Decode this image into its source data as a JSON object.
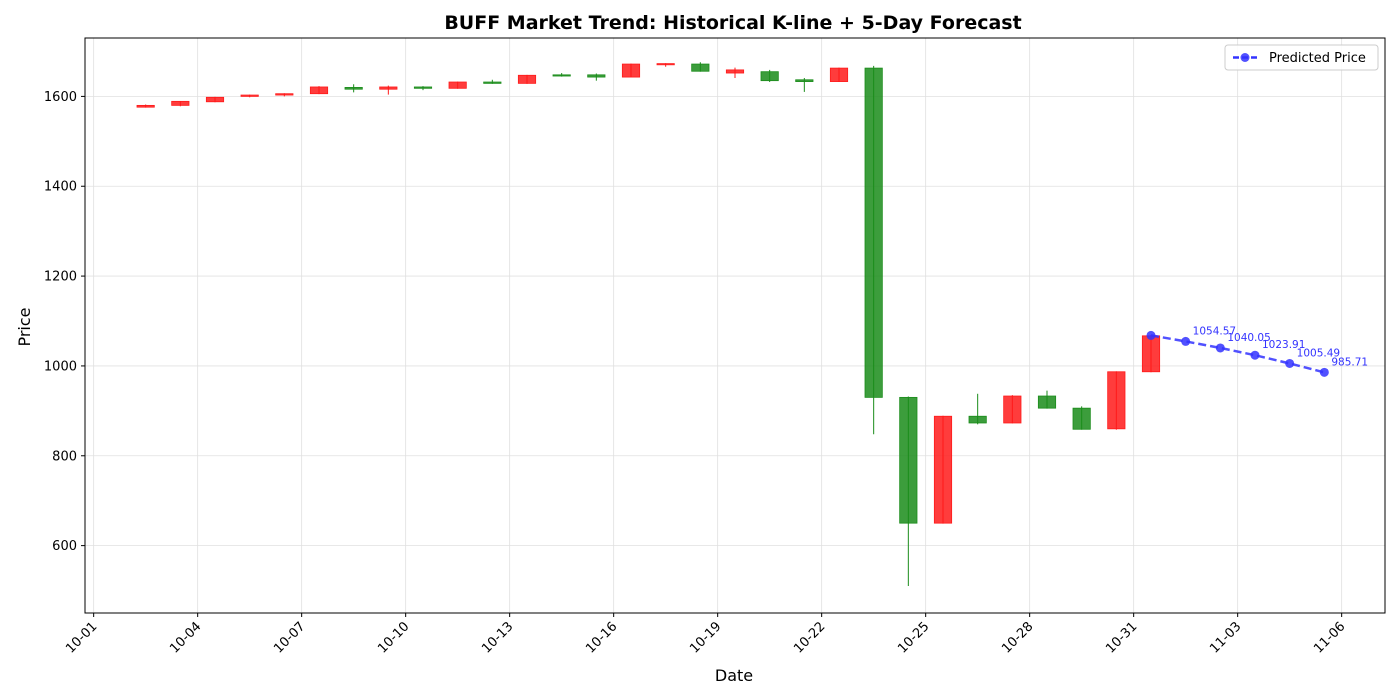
{
  "colors": {
    "up": "#1a8c1a",
    "down": "#ff1a1a",
    "forecast": "#3333ff",
    "grid": "#e0e0e0"
  },
  "chart_data": {
    "type": "candlestick",
    "title": "BUFF Market Trend: Historical K-line + 5-Day Forecast",
    "xlabel": "Date",
    "ylabel": "Price",
    "xlim": [
      "2024-09-30T18:00",
      "2024-11-07T06:00"
    ],
    "ylim": [
      450,
      1730
    ],
    "x_ticks": [
      "10-01",
      "10-04",
      "10-07",
      "10-10",
      "10-13",
      "10-16",
      "10-19",
      "10-22",
      "10-25",
      "10-28",
      "10-31",
      "11-03",
      "11-06"
    ],
    "y_ticks": [
      600,
      800,
      1000,
      1200,
      1400,
      1600
    ],
    "grid": true,
    "legend": {
      "position": "top-right",
      "entries": [
        "Predicted Price"
      ]
    },
    "candles": [
      {
        "date": "10-02",
        "open": 1576,
        "high": 1582,
        "low": 1575,
        "close": 1580
      },
      {
        "date": "10-03",
        "open": 1580,
        "high": 1589,
        "low": 1578,
        "close": 1589
      },
      {
        "date": "10-04",
        "open": 1588,
        "high": 1599,
        "low": 1587,
        "close": 1598
      },
      {
        "date": "10-05",
        "open": 1600,
        "high": 1604,
        "low": 1598,
        "close": 1603
      },
      {
        "date": "10-06",
        "open": 1603,
        "high": 1607,
        "low": 1600,
        "close": 1606
      },
      {
        "date": "10-07",
        "open": 1606,
        "high": 1623,
        "low": 1605,
        "close": 1621
      },
      {
        "date": "10-08",
        "open": 1620,
        "high": 1627,
        "low": 1609,
        "close": 1616
      },
      {
        "date": "10-09",
        "open": 1616,
        "high": 1624,
        "low": 1604,
        "close": 1621
      },
      {
        "date": "10-10",
        "open": 1621,
        "high": 1623,
        "low": 1614,
        "close": 1618
      },
      {
        "date": "10-11",
        "open": 1618,
        "high": 1633,
        "low": 1617,
        "close": 1632
      },
      {
        "date": "10-12",
        "open": 1632,
        "high": 1637,
        "low": 1628,
        "close": 1629
      },
      {
        "date": "10-13",
        "open": 1629,
        "high": 1648,
        "low": 1628,
        "close": 1647
      },
      {
        "date": "10-14",
        "open": 1648,
        "high": 1652,
        "low": 1644,
        "close": 1646
      },
      {
        "date": "10-15",
        "open": 1648,
        "high": 1651,
        "low": 1635,
        "close": 1643
      },
      {
        "date": "10-16",
        "open": 1643,
        "high": 1673,
        "low": 1643,
        "close": 1672
      },
      {
        "date": "10-17",
        "open": 1671,
        "high": 1674,
        "low": 1666,
        "close": 1673
      },
      {
        "date": "10-18",
        "open": 1672,
        "high": 1676,
        "low": 1655,
        "close": 1656
      },
      {
        "date": "10-19",
        "open": 1652,
        "high": 1664,
        "low": 1641,
        "close": 1659
      },
      {
        "date": "10-20",
        "open": 1655,
        "high": 1659,
        "low": 1632,
        "close": 1635
      },
      {
        "date": "10-21",
        "open": 1637,
        "high": 1641,
        "low": 1610,
        "close": 1633
      },
      {
        "date": "10-22",
        "open": 1633,
        "high": 1664,
        "low": 1632,
        "close": 1663
      },
      {
        "date": "10-23",
        "open": 1663,
        "high": 1668,
        "low": 848,
        "close": 930
      },
      {
        "date": "10-24",
        "open": 930,
        "high": 932,
        "low": 510,
        "close": 650
      },
      {
        "date": "10-25",
        "open": 650,
        "high": 889,
        "low": 649,
        "close": 888
      },
      {
        "date": "10-26",
        "open": 888,
        "high": 938,
        "low": 870,
        "close": 873
      },
      {
        "date": "10-27",
        "open": 873,
        "high": 935,
        "low": 872,
        "close": 933
      },
      {
        "date": "10-28",
        "open": 933,
        "high": 945,
        "low": 905,
        "close": 906
      },
      {
        "date": "10-29",
        "open": 906,
        "high": 910,
        "low": 858,
        "close": 859
      },
      {
        "date": "10-30",
        "open": 860,
        "high": 988,
        "low": 858,
        "close": 987
      },
      {
        "date": "10-31",
        "open": 987,
        "high": 1069,
        "low": 986,
        "close": 1067
      }
    ],
    "series": [
      {
        "name": "Predicted Price",
        "x": [
          "2024-10-31T12:00",
          "2024-11-01T12:00",
          "2024-11-02T12:00",
          "2024-11-03T12:00",
          "2024-11-04T12:00",
          "2024-11-05T12:00"
        ],
        "y": [
          1068,
          1054.57,
          1040.05,
          1023.91,
          1005.49,
          985.71
        ],
        "labels": [
          "",
          "1054.57",
          "1040.05",
          "1023.91",
          "1005.49",
          "985.71"
        ]
      }
    ]
  }
}
